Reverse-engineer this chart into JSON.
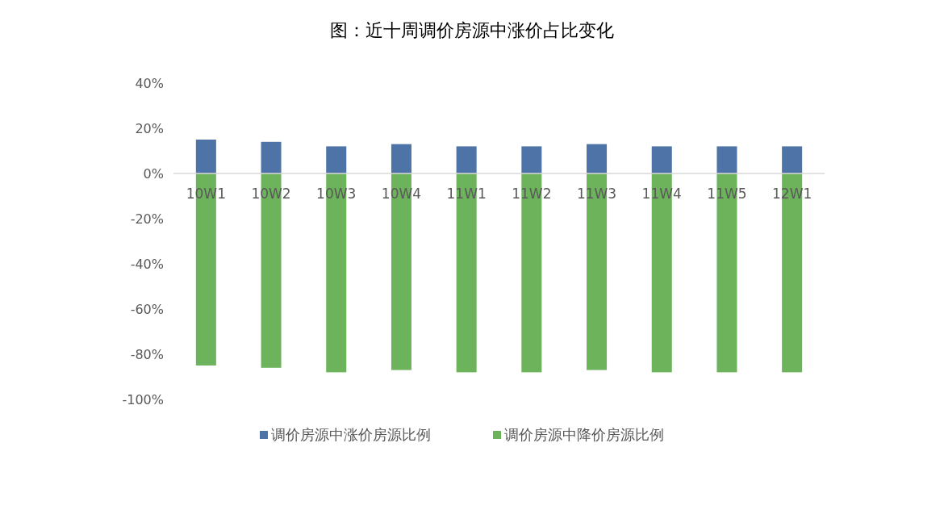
{
  "chart_data": {
    "type": "bar",
    "title": "图：近十周调价房源中涨价占比变化",
    "categories": [
      "10W1",
      "10W2",
      "10W3",
      "10W4",
      "11W1",
      "11W2",
      "11W3",
      "11W4",
      "11W5",
      "12W1"
    ],
    "stacked": true,
    "series": [
      {
        "name": "调价房源中涨价房源比例",
        "color": "#4e73a6",
        "values": [
          15,
          14,
          12,
          13,
          12,
          12,
          13,
          12,
          12,
          12
        ]
      },
      {
        "name": "调价房源中降价房源比例",
        "color": "#6cb35c",
        "values": [
          -85,
          -86,
          -88,
          -87,
          -88,
          -88,
          -87,
          -88,
          -88,
          -88
        ]
      }
    ],
    "ylim": [
      -100,
      40
    ],
    "yticks": [
      {
        "value": -100,
        "label": "-100%"
      },
      {
        "value": -80,
        "label": "-80%"
      },
      {
        "value": -60,
        "label": "-60%"
      },
      {
        "value": -40,
        "label": "-40%"
      },
      {
        "value": -20,
        "label": "-20%"
      },
      {
        "value": 0,
        "label": "0%"
      },
      {
        "value": 20,
        "label": "20%"
      },
      {
        "value": 40,
        "label": "40%"
      }
    ],
    "grid": false,
    "legend": "bottom"
  }
}
